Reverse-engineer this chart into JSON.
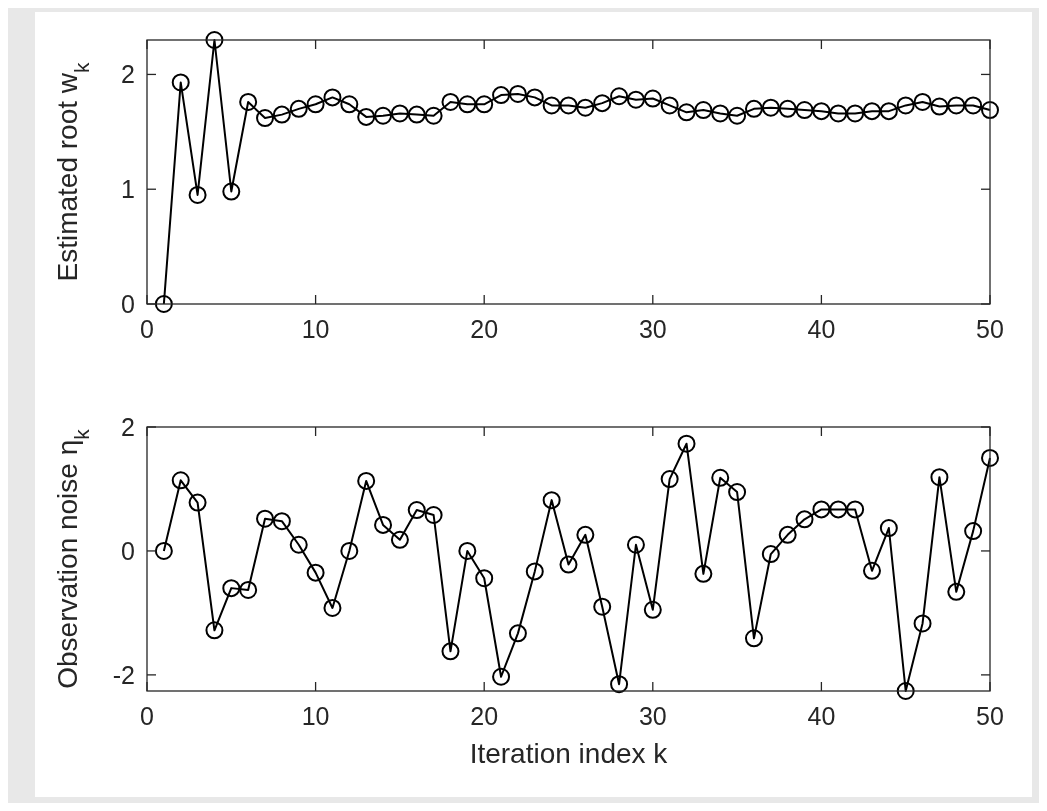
{
  "chart_data": [
    {
      "type": "line",
      "ylabel": "Estimated root w$_{k}$",
      "x": [
        1,
        2,
        3,
        4,
        5,
        6,
        7,
        8,
        9,
        10,
        11,
        12,
        13,
        14,
        15,
        16,
        17,
        18,
        19,
        20,
        21,
        22,
        23,
        24,
        25,
        26,
        27,
        28,
        29,
        30,
        31,
        32,
        33,
        34,
        35,
        36,
        37,
        38,
        39,
        40,
        41,
        42,
        43,
        44,
        45,
        46,
        47,
        48,
        49,
        50
      ],
      "series": [
        {
          "color": "#000000",
          "values": [
            0,
            1.93,
            0.95,
            2.3,
            0.98,
            1.76,
            1.62,
            1.65,
            1.7,
            1.74,
            1.8,
            1.74,
            1.63,
            1.64,
            1.66,
            1.65,
            1.64,
            1.76,
            1.74,
            1.74,
            1.82,
            1.83,
            1.8,
            1.73,
            1.73,
            1.71,
            1.75,
            1.81,
            1.78,
            1.79,
            1.73,
            1.67,
            1.69,
            1.66,
            1.64,
            1.7,
            1.71,
            1.7,
            1.69,
            1.68,
            1.66,
            1.66,
            1.68,
            1.68,
            1.73,
            1.76,
            1.72,
            1.73,
            1.73,
            1.69
          ]
        }
      ],
      "xlim": [
        0,
        50
      ],
      "xticks": [
        0,
        10,
        20,
        30,
        40,
        50
      ],
      "ylim": [
        0,
        2.3
      ],
      "yticks": [
        0,
        1,
        2
      ],
      "marker": "circle",
      "line_style": "solid"
    },
    {
      "type": "line",
      "xlabel": "Iteration index k",
      "ylabel": "Observation noise η$_{k}$",
      "x": [
        1,
        2,
        3,
        4,
        5,
        6,
        7,
        8,
        9,
        10,
        11,
        12,
        13,
        14,
        15,
        16,
        17,
        18,
        19,
        20,
        21,
        22,
        23,
        24,
        25,
        26,
        27,
        28,
        29,
        30,
        31,
        32,
        33,
        34,
        35,
        36,
        37,
        38,
        39,
        40,
        41,
        42,
        43,
        44,
        45,
        46,
        47,
        48,
        49,
        50
      ],
      "series": [
        {
          "color": "#000000",
          "values": [
            0,
            1.14,
            0.78,
            -1.28,
            -0.6,
            -0.63,
            0.52,
            0.48,
            0.1,
            -0.35,
            -0.92,
            0,
            1.13,
            0.42,
            0.18,
            0.66,
            0.58,
            -1.62,
            0,
            -0.44,
            -2.03,
            -1.33,
            -0.33,
            0.82,
            -0.22,
            0.26,
            -0.9,
            -2.15,
            0.1,
            -0.95,
            1.16,
            1.73,
            -0.37,
            1.18,
            0.95,
            -1.41,
            -0.05,
            0.26,
            0.51,
            0.67,
            0.67,
            0.67,
            -0.32,
            0.37,
            -2.26,
            -1.17,
            1.19,
            -0.66,
            0.32,
            1.5
          ]
        }
      ],
      "xlim": [
        0,
        50
      ],
      "xticks": [
        0,
        10,
        20,
        30,
        40,
        50
      ],
      "ylim": [
        -2.26,
        2
      ],
      "yticks": [
        -2,
        0,
        2
      ],
      "marker": "circle",
      "line_style": "solid"
    }
  ]
}
